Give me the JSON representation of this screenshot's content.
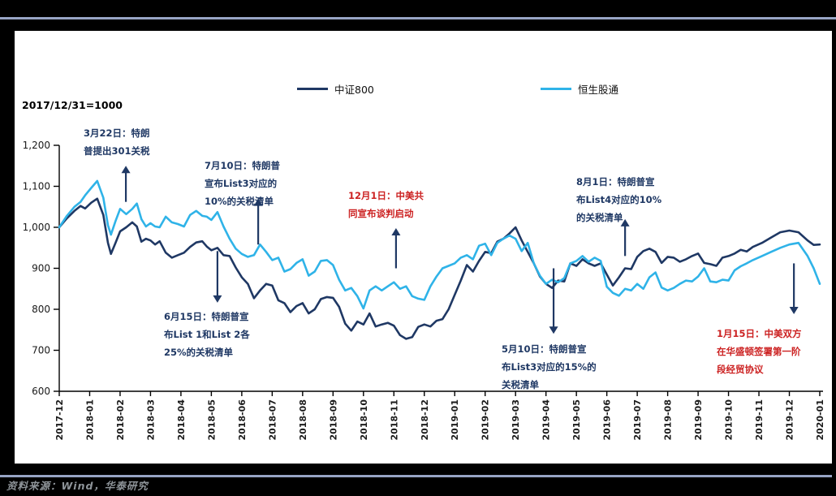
{
  "accent_rule_color": "#97A4C4",
  "note": "2017/12/31=1000",
  "legend": [
    {
      "label": "中证800",
      "color": "#1F3864"
    },
    {
      "label": "恒生股通",
      "color": "#2FB3E8"
    }
  ],
  "annotations": [
    {
      "id": "mar22",
      "text": "3月22日：特朗\n普提出301关税",
      "color": "#1F3864",
      "arrow": {
        "month": 2.19,
        "v_tail": 1062,
        "v_head": 1150
      }
    },
    {
      "id": "jul10",
      "text": "7月10日：特朗普\n宣布List3对应的\n10%的关税清单",
      "color": "#1F3864",
      "arrow": {
        "month": 6.54,
        "v_tail": 958,
        "v_head": 1070
      }
    },
    {
      "id": "jun15",
      "text": "6月15日：特朗普宣\n布List 1和List 2各\n25%的关税清单",
      "color": "#1F3864",
      "arrow": {
        "month": 5.2,
        "v_tail": 942,
        "v_head": 816
      }
    },
    {
      "id": "dec1",
      "text": "12月1日：中美共\n同宣布谈判启动",
      "color": "#CC2222",
      "arrow": {
        "month": 11.07,
        "v_tail": 900,
        "v_head": 998
      }
    },
    {
      "id": "aug1",
      "text": "8月1日：特朗普宣\n布List4对应的10%\n的关税清单",
      "color": "#1F3864",
      "arrow": {
        "month": 18.6,
        "v_tail": 930,
        "v_head": 1020
      }
    },
    {
      "id": "may10",
      "text": "5月10日：特朗普宣\n布List3对应的15%的\n关税清单",
      "color": "#1F3864",
      "arrow": {
        "month": 16.25,
        "v_tail": 900,
        "v_head": 740
      }
    },
    {
      "id": "jan15",
      "text": "1月15日：中美双方\n在华盛顿签署第一阶\n段经贸协议",
      "color": "#CC2222",
      "arrow": {
        "month": 24.15,
        "v_tail": 912,
        "v_head": 788
      }
    }
  ],
  "footer": {
    "source": "资料来源：Wind，华泰研究"
  },
  "chart_data": {
    "type": "line",
    "title": "2017/12/31=1000",
    "xlabel": "",
    "ylabel": "",
    "ylim": [
      600,
      1200
    ],
    "y_tick_labels": [
      "600",
      "700",
      "800",
      "900",
      "1,000",
      "1,100",
      "1,200"
    ],
    "y_tick_values": [
      600,
      700,
      800,
      900,
      1000,
      1100,
      1200
    ],
    "grid": false,
    "legend_position": "top-center",
    "x_unit": "months since 2017-12 (0) through 2020-01 (25)",
    "x_tick_labels": [
      "2017-12",
      "2018-01",
      "2018-02",
      "2018-03",
      "2018-04",
      "2018-05",
      "2018-06",
      "2018-07",
      "2018-08",
      "2018-09",
      "2018-10",
      "2018-11",
      "2018-12",
      "2019-01",
      "2019-02",
      "2019-03",
      "2019-04",
      "2019-05",
      "2019-06",
      "2019-07",
      "2019-08",
      "2019-09",
      "2019-10",
      "2019-11",
      "2019-12",
      "2020-01"
    ],
    "series": [
      {
        "name": "中证800",
        "color": "#1F3864",
        "points": [
          [
            0,
            1000
          ],
          [
            0.25,
            1022
          ],
          [
            0.5,
            1040
          ],
          [
            0.7,
            1052
          ],
          [
            0.85,
            1046
          ],
          [
            1.05,
            1060
          ],
          [
            1.25,
            1070
          ],
          [
            1.45,
            1030
          ],
          [
            1.6,
            962
          ],
          [
            1.7,
            935
          ],
          [
            1.85,
            962
          ],
          [
            2.0,
            990
          ],
          [
            2.2,
            1000
          ],
          [
            2.4,
            1012
          ],
          [
            2.55,
            1002
          ],
          [
            2.7,
            965
          ],
          [
            2.85,
            972
          ],
          [
            3.0,
            968
          ],
          [
            3.15,
            958
          ],
          [
            3.3,
            966
          ],
          [
            3.5,
            938
          ],
          [
            3.7,
            926
          ],
          [
            3.9,
            932
          ],
          [
            4.1,
            938
          ],
          [
            4.3,
            952
          ],
          [
            4.5,
            963
          ],
          [
            4.7,
            966
          ],
          [
            4.85,
            953
          ],
          [
            5.0,
            944
          ],
          [
            5.2,
            950
          ],
          [
            5.4,
            932
          ],
          [
            5.6,
            930
          ],
          [
            5.8,
            902
          ],
          [
            6.0,
            878
          ],
          [
            6.2,
            862
          ],
          [
            6.4,
            827
          ],
          [
            6.6,
            846
          ],
          [
            6.8,
            862
          ],
          [
            7.0,
            858
          ],
          [
            7.2,
            822
          ],
          [
            7.4,
            815
          ],
          [
            7.6,
            793
          ],
          [
            7.8,
            808
          ],
          [
            8.0,
            815
          ],
          [
            8.2,
            790
          ],
          [
            8.4,
            800
          ],
          [
            8.6,
            825
          ],
          [
            8.8,
            830
          ],
          [
            9.0,
            828
          ],
          [
            9.2,
            806
          ],
          [
            9.4,
            765
          ],
          [
            9.6,
            748
          ],
          [
            9.8,
            770
          ],
          [
            10.0,
            763
          ],
          [
            10.2,
            790
          ],
          [
            10.4,
            758
          ],
          [
            10.6,
            763
          ],
          [
            10.8,
            767
          ],
          [
            11.0,
            760
          ],
          [
            11.2,
            737
          ],
          [
            11.4,
            728
          ],
          [
            11.6,
            732
          ],
          [
            11.8,
            757
          ],
          [
            12.0,
            763
          ],
          [
            12.2,
            758
          ],
          [
            12.4,
            772
          ],
          [
            12.6,
            776
          ],
          [
            12.8,
            800
          ],
          [
            13.0,
            835
          ],
          [
            13.2,
            870
          ],
          [
            13.4,
            908
          ],
          [
            13.6,
            892
          ],
          [
            13.8,
            918
          ],
          [
            14.0,
            940
          ],
          [
            14.2,
            937
          ],
          [
            14.4,
            965
          ],
          [
            14.6,
            972
          ],
          [
            14.8,
            985
          ],
          [
            15.0,
            1000
          ],
          [
            15.2,
            968
          ],
          [
            15.4,
            940
          ],
          [
            15.6,
            912
          ],
          [
            15.8,
            880
          ],
          [
            16.0,
            862
          ],
          [
            16.2,
            852
          ],
          [
            16.4,
            870
          ],
          [
            16.6,
            868
          ],
          [
            16.8,
            912
          ],
          [
            17.0,
            906
          ],
          [
            17.2,
            922
          ],
          [
            17.4,
            912
          ],
          [
            17.6,
            906
          ],
          [
            17.8,
            912
          ],
          [
            18.0,
            885
          ],
          [
            18.2,
            858
          ],
          [
            18.4,
            878
          ],
          [
            18.6,
            900
          ],
          [
            18.8,
            898
          ],
          [
            19.0,
            928
          ],
          [
            19.2,
            942
          ],
          [
            19.4,
            948
          ],
          [
            19.6,
            940
          ],
          [
            19.8,
            913
          ],
          [
            20.0,
            928
          ],
          [
            20.2,
            926
          ],
          [
            20.4,
            916
          ],
          [
            20.6,
            922
          ],
          [
            20.8,
            930
          ],
          [
            21.0,
            936
          ],
          [
            21.2,
            913
          ],
          [
            21.4,
            910
          ],
          [
            21.6,
            906
          ],
          [
            21.8,
            926
          ],
          [
            22.0,
            930
          ],
          [
            22.2,
            936
          ],
          [
            22.4,
            945
          ],
          [
            22.6,
            941
          ],
          [
            22.8,
            952
          ],
          [
            23.1,
            962
          ],
          [
            23.4,
            975
          ],
          [
            23.7,
            988
          ],
          [
            24.0,
            992
          ],
          [
            24.3,
            988
          ],
          [
            24.6,
            968
          ],
          [
            24.8,
            957
          ],
          [
            25.0,
            958
          ]
        ]
      },
      {
        "name": "恒生股通",
        "color": "#2FB3E8",
        "points": [
          [
            0,
            1000
          ],
          [
            0.25,
            1028
          ],
          [
            0.5,
            1050
          ],
          [
            0.7,
            1062
          ],
          [
            0.85,
            1078
          ],
          [
            1.05,
            1096
          ],
          [
            1.25,
            1113
          ],
          [
            1.45,
            1072
          ],
          [
            1.6,
            1005
          ],
          [
            1.7,
            982
          ],
          [
            1.85,
            1015
          ],
          [
            2.0,
            1045
          ],
          [
            2.2,
            1032
          ],
          [
            2.4,
            1045
          ],
          [
            2.55,
            1058
          ],
          [
            2.7,
            1020
          ],
          [
            2.85,
            1002
          ],
          [
            3.0,
            1010
          ],
          [
            3.15,
            1002
          ],
          [
            3.3,
            1000
          ],
          [
            3.5,
            1026
          ],
          [
            3.7,
            1012
          ],
          [
            3.9,
            1008
          ],
          [
            4.1,
            1002
          ],
          [
            4.3,
            1030
          ],
          [
            4.5,
            1040
          ],
          [
            4.7,
            1028
          ],
          [
            4.85,
            1026
          ],
          [
            5.0,
            1018
          ],
          [
            5.2,
            1037
          ],
          [
            5.4,
            1002
          ],
          [
            5.6,
            972
          ],
          [
            5.8,
            948
          ],
          [
            6.0,
            935
          ],
          [
            6.2,
            928
          ],
          [
            6.4,
            932
          ],
          [
            6.6,
            958
          ],
          [
            6.8,
            940
          ],
          [
            7.0,
            920
          ],
          [
            7.2,
            926
          ],
          [
            7.4,
            892
          ],
          [
            7.6,
            898
          ],
          [
            7.8,
            913
          ],
          [
            8.0,
            922
          ],
          [
            8.2,
            882
          ],
          [
            8.4,
            892
          ],
          [
            8.6,
            918
          ],
          [
            8.8,
            920
          ],
          [
            9.0,
            908
          ],
          [
            9.2,
            872
          ],
          [
            9.4,
            846
          ],
          [
            9.6,
            852
          ],
          [
            9.8,
            832
          ],
          [
            10.0,
            802
          ],
          [
            10.2,
            846
          ],
          [
            10.4,
            856
          ],
          [
            10.6,
            846
          ],
          [
            10.8,
            856
          ],
          [
            11.0,
            866
          ],
          [
            11.2,
            850
          ],
          [
            11.4,
            856
          ],
          [
            11.6,
            832
          ],
          [
            11.8,
            826
          ],
          [
            12.0,
            823
          ],
          [
            12.2,
            856
          ],
          [
            12.4,
            880
          ],
          [
            12.6,
            900
          ],
          [
            12.8,
            906
          ],
          [
            13.0,
            912
          ],
          [
            13.2,
            926
          ],
          [
            13.4,
            932
          ],
          [
            13.6,
            922
          ],
          [
            13.8,
            955
          ],
          [
            14.0,
            960
          ],
          [
            14.2,
            932
          ],
          [
            14.4,
            962
          ],
          [
            14.6,
            972
          ],
          [
            14.8,
            980
          ],
          [
            15.0,
            972
          ],
          [
            15.2,
            942
          ],
          [
            15.4,
            962
          ],
          [
            15.6,
            912
          ],
          [
            15.8,
            882
          ],
          [
            16.0,
            862
          ],
          [
            16.2,
            872
          ],
          [
            16.4,
            866
          ],
          [
            16.6,
            876
          ],
          [
            16.8,
            912
          ],
          [
            17.0,
            918
          ],
          [
            17.2,
            930
          ],
          [
            17.4,
            916
          ],
          [
            17.6,
            926
          ],
          [
            17.8,
            918
          ],
          [
            18.0,
            855
          ],
          [
            18.2,
            840
          ],
          [
            18.4,
            833
          ],
          [
            18.6,
            850
          ],
          [
            18.8,
            846
          ],
          [
            19.0,
            862
          ],
          [
            19.2,
            850
          ],
          [
            19.4,
            878
          ],
          [
            19.6,
            890
          ],
          [
            19.8,
            853
          ],
          [
            20.0,
            846
          ],
          [
            20.2,
            852
          ],
          [
            20.4,
            862
          ],
          [
            20.6,
            870
          ],
          [
            20.8,
            868
          ],
          [
            21.0,
            880
          ],
          [
            21.2,
            900
          ],
          [
            21.4,
            868
          ],
          [
            21.6,
            866
          ],
          [
            21.8,
            872
          ],
          [
            22.0,
            870
          ],
          [
            22.2,
            895
          ],
          [
            22.4,
            905
          ],
          [
            22.6,
            912
          ],
          [
            22.8,
            920
          ],
          [
            23.1,
            930
          ],
          [
            23.4,
            940
          ],
          [
            23.7,
            950
          ],
          [
            24.0,
            958
          ],
          [
            24.3,
            962
          ],
          [
            24.6,
            930
          ],
          [
            24.8,
            900
          ],
          [
            25.0,
            862
          ]
        ]
      }
    ]
  }
}
